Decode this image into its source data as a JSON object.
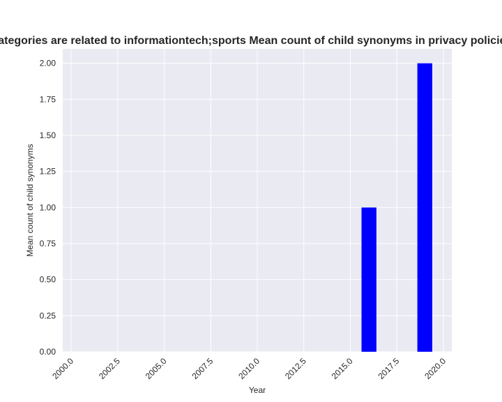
{
  "chart_data": {
    "type": "bar",
    "title": "Categories are related to informationtech;sports Mean count of child synonyms in privacy policies",
    "xlabel": "Year",
    "ylabel": "Mean count of child synonyms",
    "x": [
      2016,
      2019
    ],
    "values": [
      1.0,
      2.0
    ],
    "bar_width": 0.8,
    "xlim": [
      1999.55,
      2020.45
    ],
    "ylim": [
      0,
      2.1
    ],
    "xticks": [
      2000.0,
      2002.5,
      2005.0,
      2007.5,
      2010.0,
      2012.5,
      2015.0,
      2017.5,
      2020.0
    ],
    "xtick_labels": [
      "2000.0",
      "2002.5",
      "2005.0",
      "2007.5",
      "2010.0",
      "2012.5",
      "2015.0",
      "2017.5",
      "2020.0"
    ],
    "yticks": [
      0.0,
      0.25,
      0.5,
      0.75,
      1.0,
      1.25,
      1.5,
      1.75,
      2.0
    ],
    "ytick_labels": [
      "0.00",
      "0.25",
      "0.50",
      "0.75",
      "1.00",
      "1.25",
      "1.50",
      "1.75",
      "2.00"
    ],
    "grid": true,
    "colors": {
      "bar": "#0000ff",
      "plot_background": "#eaeaf2",
      "grid": "#ffffff"
    }
  }
}
